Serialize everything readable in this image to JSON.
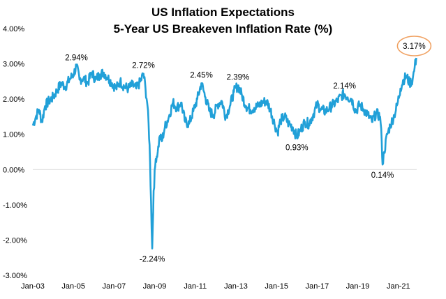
{
  "chart_data": {
    "type": "line",
    "title": "US Inflation Expectations",
    "subtitle": "5-Year US Breakeven Inflation Rate (%)",
    "xlabel": "",
    "ylabel": "",
    "ylim": [
      -3.0,
      4.0
    ],
    "yticks": [
      "4.00%",
      "3.00%",
      "2.00%",
      "1.00%",
      "0.00%",
      "-1.00%",
      "-2.00%",
      "-3.00%"
    ],
    "xlim": [
      2003.0,
      2021.9
    ],
    "xticks": [
      "Jan-03",
      "Jan-05",
      "Jan-07",
      "Jan-09",
      "Jan-11",
      "Jan-13",
      "Jan-15",
      "Jan-17",
      "Jan-19",
      "Jan-21"
    ],
    "grid": false,
    "line_color": "#21a0d8",
    "highlight_color": "#f0a060",
    "series": [
      {
        "name": "",
        "points": [
          [
            2003.0,
            1.25
          ],
          [
            2003.15,
            1.5
          ],
          [
            2003.3,
            1.7
          ],
          [
            2003.45,
            1.35
          ],
          [
            2003.6,
            1.8
          ],
          [
            2003.8,
            1.95
          ],
          [
            2004.0,
            2.05
          ],
          [
            2004.2,
            2.25
          ],
          [
            2004.4,
            2.45
          ],
          [
            2004.6,
            2.35
          ],
          [
            2004.8,
            2.55
          ],
          [
            2005.0,
            2.7
          ],
          [
            2005.15,
            2.94
          ],
          [
            2005.3,
            2.55
          ],
          [
            2005.5,
            2.6
          ],
          [
            2005.7,
            2.45
          ],
          [
            2005.9,
            2.75
          ],
          [
            2006.1,
            2.55
          ],
          [
            2006.3,
            2.7
          ],
          [
            2006.5,
            2.75
          ],
          [
            2006.7,
            2.6
          ],
          [
            2006.9,
            2.45
          ],
          [
            2007.1,
            2.3
          ],
          [
            2007.3,
            2.5
          ],
          [
            2007.5,
            2.35
          ],
          [
            2007.7,
            2.3
          ],
          [
            2007.9,
            2.4
          ],
          [
            2008.1,
            2.3
          ],
          [
            2008.3,
            2.5
          ],
          [
            2008.45,
            2.72
          ],
          [
            2008.55,
            2.3
          ],
          [
            2008.65,
            1.8
          ],
          [
            2008.75,
            0.7
          ],
          [
            2008.82,
            -0.9
          ],
          [
            2008.88,
            -2.24
          ],
          [
            2008.95,
            -0.6
          ],
          [
            2009.05,
            0.3
          ],
          [
            2009.15,
            0.5
          ],
          [
            2009.25,
            0.95
          ],
          [
            2009.35,
            0.8
          ],
          [
            2009.5,
            1.2
          ],
          [
            2009.7,
            1.5
          ],
          [
            2009.9,
            1.9
          ],
          [
            2010.1,
            1.75
          ],
          [
            2010.3,
            1.9
          ],
          [
            2010.5,
            1.35
          ],
          [
            2010.7,
            1.3
          ],
          [
            2010.9,
            1.65
          ],
          [
            2011.1,
            2.0
          ],
          [
            2011.3,
            2.45
          ],
          [
            2011.5,
            2.05
          ],
          [
            2011.7,
            1.65
          ],
          [
            2011.9,
            1.55
          ],
          [
            2012.1,
            1.85
          ],
          [
            2012.3,
            1.95
          ],
          [
            2012.5,
            1.5
          ],
          [
            2012.7,
            1.8
          ],
          [
            2012.9,
            2.2
          ],
          [
            2013.1,
            2.39
          ],
          [
            2013.3,
            2.1
          ],
          [
            2013.5,
            1.8
          ],
          [
            2013.7,
            1.7
          ],
          [
            2013.9,
            1.75
          ],
          [
            2014.1,
            1.8
          ],
          [
            2014.3,
            1.9
          ],
          [
            2014.5,
            1.95
          ],
          [
            2014.7,
            1.7
          ],
          [
            2014.9,
            1.3
          ],
          [
            2015.05,
            1.05
          ],
          [
            2015.2,
            1.4
          ],
          [
            2015.4,
            1.5
          ],
          [
            2015.6,
            1.3
          ],
          [
            2015.8,
            1.2
          ],
          [
            2016.0,
            0.93
          ],
          [
            2016.2,
            1.15
          ],
          [
            2016.4,
            1.35
          ],
          [
            2016.6,
            1.3
          ],
          [
            2016.8,
            1.55
          ],
          [
            2017.0,
            1.85
          ],
          [
            2017.2,
            1.7
          ],
          [
            2017.4,
            1.65
          ],
          [
            2017.6,
            1.75
          ],
          [
            2017.8,
            1.85
          ],
          [
            2018.0,
            1.95
          ],
          [
            2018.2,
            2.1
          ],
          [
            2018.35,
            2.14
          ],
          [
            2018.5,
            2.05
          ],
          [
            2018.7,
            2.0
          ],
          [
            2018.9,
            1.65
          ],
          [
            2019.1,
            1.85
          ],
          [
            2019.3,
            1.7
          ],
          [
            2019.5,
            1.55
          ],
          [
            2019.7,
            1.35
          ],
          [
            2019.9,
            1.6
          ],
          [
            2020.1,
            1.5
          ],
          [
            2020.18,
            0.8
          ],
          [
            2020.22,
            0.14
          ],
          [
            2020.3,
            0.5
          ],
          [
            2020.45,
            1.0
          ],
          [
            2020.6,
            1.25
          ],
          [
            2020.8,
            1.55
          ],
          [
            2020.95,
            1.85
          ],
          [
            2021.1,
            2.3
          ],
          [
            2021.25,
            2.55
          ],
          [
            2021.4,
            2.65
          ],
          [
            2021.55,
            2.45
          ],
          [
            2021.7,
            2.55
          ],
          [
            2021.8,
            2.9
          ],
          [
            2021.88,
            3.17
          ]
        ]
      }
    ],
    "data_labels": [
      {
        "x": 2005.15,
        "y": 2.94,
        "text": "2.94%",
        "pos": "above"
      },
      {
        "x": 2008.45,
        "y": 2.72,
        "text": "2.72%",
        "pos": "above"
      },
      {
        "x": 2008.88,
        "y": -2.24,
        "text": "-2.24%",
        "pos": "below"
      },
      {
        "x": 2011.3,
        "y": 2.45,
        "text": "2.45%",
        "pos": "above"
      },
      {
        "x": 2013.1,
        "y": 2.39,
        "text": "2.39%",
        "pos": "above"
      },
      {
        "x": 2016.0,
        "y": 0.93,
        "text": "0.93%",
        "pos": "below"
      },
      {
        "x": 2018.35,
        "y": 2.14,
        "text": "2.14%",
        "pos": "above"
      },
      {
        "x": 2020.22,
        "y": 0.14,
        "text": "0.14%",
        "pos": "below"
      },
      {
        "x": 2021.88,
        "y": 3.17,
        "text": "3.17%",
        "pos": "highlight"
      }
    ]
  }
}
